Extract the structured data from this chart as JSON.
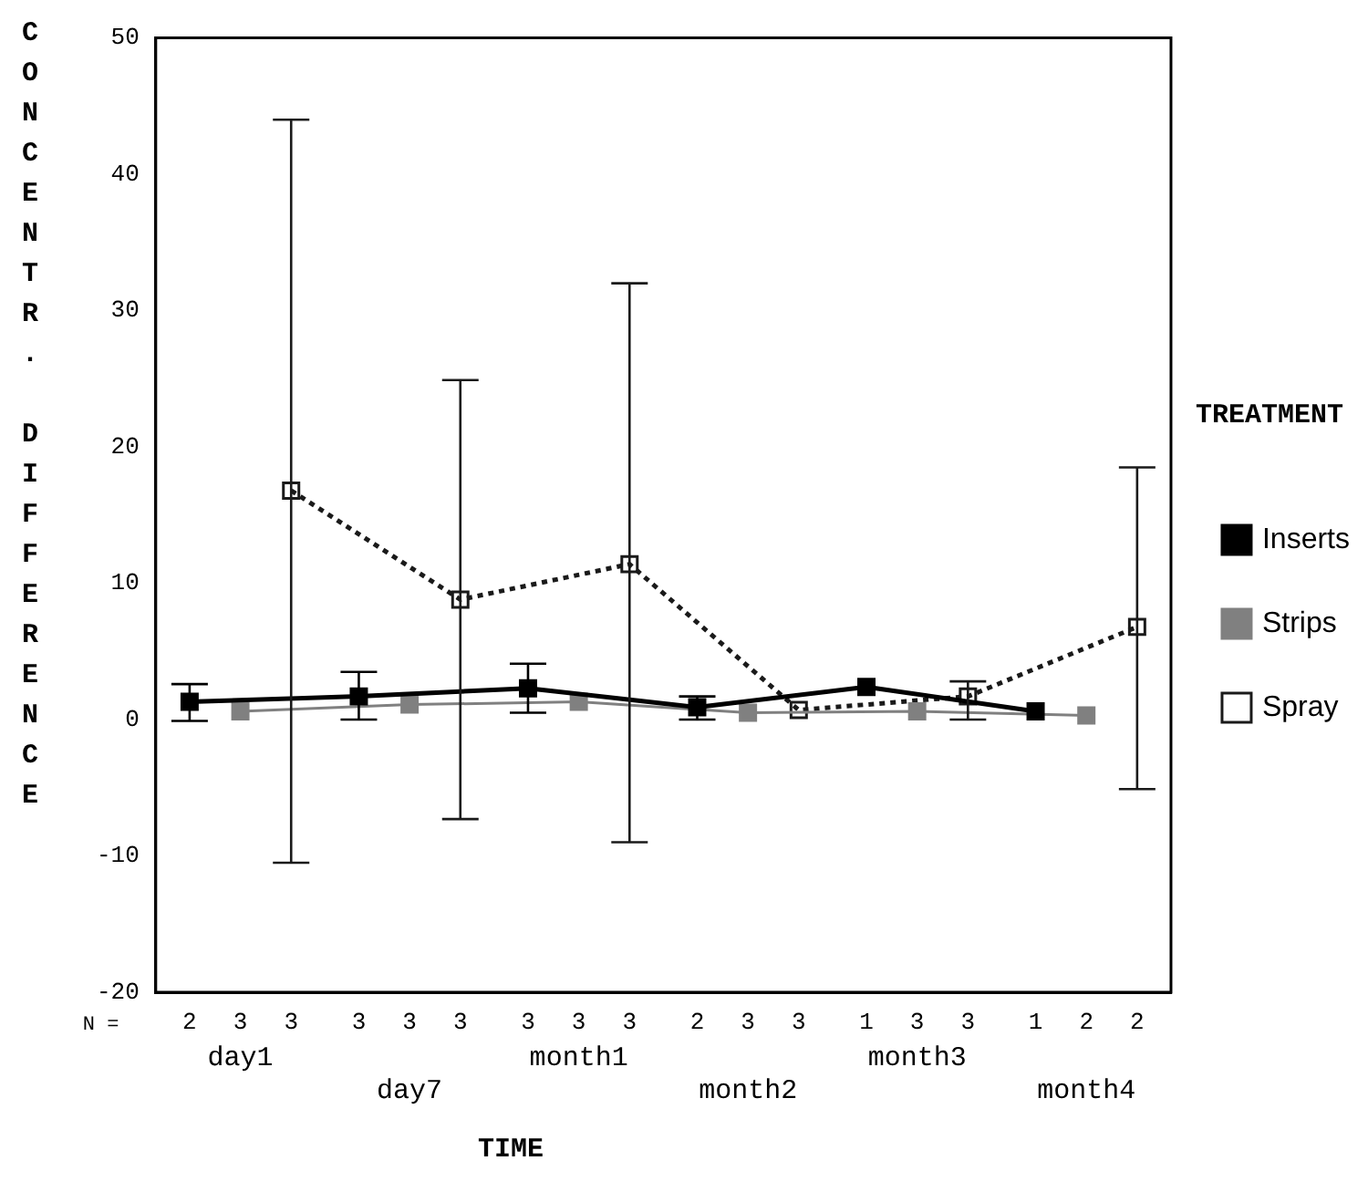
{
  "chart_data": {
    "type": "line",
    "ylabel": "CONCENTR. DIFFERENCE",
    "xlabel": "TIME",
    "legend_title": "TREATMENT",
    "categories": [
      "day1",
      "day7",
      "month1",
      "month2",
      "month3",
      "month4"
    ],
    "ylim": [
      -20,
      50
    ],
    "yticks": [
      -20,
      -10,
      0,
      10,
      20,
      30,
      40,
      50
    ],
    "series": [
      {
        "name": "Inserts",
        "color": "#000000",
        "line_style": "solid",
        "values": [
          1.3,
          1.7,
          2.3,
          0.9,
          2.4,
          0.6
        ],
        "errors": [
          [
            -0.1,
            2.6
          ],
          [
            0,
            3.5
          ],
          [
            0.5,
            4.1
          ],
          [
            0,
            1.7
          ],
          null,
          null
        ]
      },
      {
        "name": "Strips",
        "color": "#808080",
        "line_style": "solid",
        "values": [
          0.6,
          1.1,
          1.3,
          0.5,
          0.6,
          0.3
        ]
      },
      {
        "name": "Spray",
        "color": "#1a1a1a",
        "line_style": "dotted",
        "values": [
          16.8,
          8.8,
          11.4,
          0.7,
          1.7,
          6.8
        ],
        "errors": [
          [
            -10.5,
            44
          ],
          [
            -7.3,
            24.9
          ],
          [
            -9,
            32
          ],
          null,
          [
            0,
            2.8
          ],
          [
            -5.1,
            18.5
          ]
        ]
      }
    ],
    "marker": "square",
    "legend": "right",
    "grid": false,
    "annotations": [
      "N =",
      "2",
      "3",
      "3",
      "3",
      "3",
      "3",
      "3",
      "3",
      "3",
      "2",
      "3",
      "3",
      "1",
      "3",
      "3",
      "1",
      "2",
      "2"
    ]
  }
}
